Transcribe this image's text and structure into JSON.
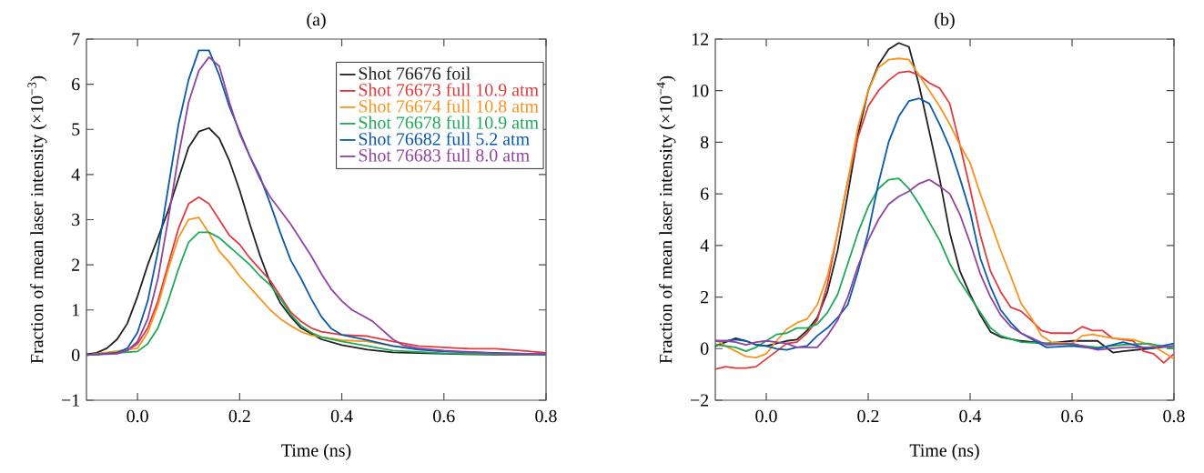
{
  "chart_data": [
    {
      "type": "line",
      "title": "(a)",
      "xlabel": "Time (ns)",
      "ylabel": "Fraction of mean laser intensity (×10$^{−3}$)",
      "legend": "top right",
      "xlim": [
        -0.1,
        0.8
      ],
      "ylim": [
        -1,
        7
      ],
      "xticks": [
        {
          "value": 0,
          "label": "0.0"
        },
        0.2,
        0.4,
        0.6,
        0.8
      ],
      "yticks": [
        {
          "value": -1,
          "label": "−1"
        },
        0,
        1,
        2,
        3,
        4,
        5,
        6,
        7
      ],
      "series": [
        {
          "name": "Shot 76676 foil",
          "color": "#231f20",
          "x": [
            -0.1,
            -0.08,
            -0.06,
            -0.04,
            -0.02,
            0,
            0.02,
            0.04,
            0.06,
            0.08,
            0.1,
            0.12,
            0.14,
            0.16,
            0.18,
            0.2,
            0.22,
            0.24,
            0.26,
            0.28,
            0.3,
            0.32,
            0.36,
            0.4,
            0.45,
            0.5,
            0.6,
            0.7,
            0.8
          ],
          "values": [
            0.02,
            0.05,
            0.15,
            0.35,
            0.7,
            1.3,
            2.0,
            2.6,
            3.2,
            3.9,
            4.6,
            4.95,
            5.03,
            4.8,
            4.3,
            3.65,
            2.9,
            2.2,
            1.6,
            1.15,
            0.85,
            0.6,
            0.35,
            0.22,
            0.12,
            0.06,
            0.03,
            0.01,
            0.01
          ]
        },
        {
          "name": "Shot 76673 full 10.9 atm",
          "color": "#e03a3e",
          "x": [
            -0.1,
            -0.02,
            0,
            0.02,
            0.04,
            0.06,
            0.08,
            0.1,
            0.12,
            0.14,
            0.16,
            0.18,
            0.2,
            0.22,
            0.24,
            0.26,
            0.28,
            0.3,
            0.32,
            0.34,
            0.36,
            0.4,
            0.45,
            0.5,
            0.55,
            0.6,
            0.65,
            0.7,
            0.75,
            0.8
          ],
          "values": [
            0,
            0.1,
            0.25,
            0.6,
            1.2,
            2.0,
            2.8,
            3.35,
            3.5,
            3.35,
            3.0,
            2.65,
            2.45,
            2.15,
            1.9,
            1.65,
            1.3,
            0.95,
            0.75,
            0.6,
            0.52,
            0.45,
            0.42,
            0.3,
            0.2,
            0.17,
            0.14,
            0.14,
            0.1,
            0.05
          ]
        },
        {
          "name": "Shot 76674 full 10.8 atm",
          "color": "#f7941d",
          "x": [
            -0.1,
            0,
            0.02,
            0.04,
            0.06,
            0.08,
            0.1,
            0.12,
            0.14,
            0.16,
            0.18,
            0.2,
            0.22,
            0.24,
            0.26,
            0.28,
            0.3,
            0.32,
            0.34,
            0.4,
            0.45,
            0.5,
            0.6
          ],
          "values": [
            0,
            0.15,
            0.5,
            1.1,
            1.9,
            2.6,
            3.0,
            3.05,
            2.7,
            2.3,
            2.05,
            1.75,
            1.5,
            1.25,
            1.0,
            0.8,
            0.65,
            0.52,
            0.44,
            0.33,
            0.3,
            0.2,
            0.08
          ]
        },
        {
          "name": "Shot 76678 full 10.9 atm",
          "color": "#1fa85a",
          "x": [
            -0.1,
            0,
            0.02,
            0.04,
            0.06,
            0.08,
            0.1,
            0.12,
            0.14,
            0.16,
            0.18,
            0.2,
            0.22,
            0.24,
            0.26,
            0.28,
            0.3,
            0.32,
            0.34,
            0.36,
            0.4,
            0.45,
            0.5,
            0.6,
            0.7,
            0.8
          ],
          "values": [
            0,
            0.08,
            0.25,
            0.6,
            1.2,
            1.9,
            2.5,
            2.72,
            2.72,
            2.6,
            2.4,
            2.2,
            2.0,
            1.75,
            1.55,
            1.25,
            0.9,
            0.65,
            0.5,
            0.4,
            0.3,
            0.2,
            0.1,
            0.04,
            0.02,
            0.01
          ]
        },
        {
          "name": "Shot 76682 full 5.2 atm",
          "color": "#0a5aa8",
          "x": [
            -0.1,
            -0.04,
            -0.02,
            0,
            0.02,
            0.04,
            0.06,
            0.08,
            0.1,
            0.12,
            0.14,
            0.16,
            0.18,
            0.2,
            0.22,
            0.24,
            0.26,
            0.28,
            0.3,
            0.32,
            0.34,
            0.36,
            0.38,
            0.4,
            0.45,
            0.5,
            0.55,
            0.6,
            0.7,
            0.8
          ],
          "values": [
            0,
            0.05,
            0.15,
            0.5,
            1.2,
            2.3,
            3.7,
            5.1,
            6.1,
            6.75,
            6.75,
            6.2,
            5.5,
            4.95,
            4.4,
            3.95,
            3.35,
            2.7,
            2.1,
            1.7,
            1.25,
            0.85,
            0.58,
            0.45,
            0.33,
            0.2,
            0.12,
            0.08,
            0.05,
            0.02
          ]
        },
        {
          "name": "Shot 76683 full 8.0 atm",
          "color": "#8e44a0",
          "x": [
            -0.1,
            -0.04,
            -0.02,
            0,
            0.02,
            0.04,
            0.06,
            0.08,
            0.1,
            0.12,
            0.14,
            0.16,
            0.18,
            0.2,
            0.22,
            0.24,
            0.26,
            0.28,
            0.3,
            0.32,
            0.34,
            0.36,
            0.38,
            0.4,
            0.42,
            0.44,
            0.46,
            0.48,
            0.5,
            0.52,
            0.55,
            0.6,
            0.7,
            0.8
          ],
          "values": [
            0,
            0.03,
            0.1,
            0.3,
            0.8,
            1.7,
            3.0,
            4.4,
            5.6,
            6.3,
            6.6,
            6.4,
            5.6,
            4.9,
            4.4,
            3.9,
            3.5,
            3.2,
            2.9,
            2.55,
            2.2,
            1.8,
            1.45,
            1.2,
            1.0,
            0.88,
            0.75,
            0.55,
            0.35,
            0.22,
            0.15,
            0.1,
            0.04,
            0.02
          ]
        }
      ]
    },
    {
      "type": "line",
      "title": "(b)",
      "xlabel": "Time (ns)",
      "ylabel": "Fraction of mean laser intensity (×10$^{−4}$)",
      "xlim": [
        -0.1,
        0.8
      ],
      "ylim": [
        -2,
        12
      ],
      "xticks": [
        {
          "value": 0,
          "label": "0.0"
        },
        0.2,
        0.4,
        0.6,
        0.8
      ],
      "yticks": [
        {
          "value": -2,
          "label": "−2"
        },
        0,
        2,
        4,
        6,
        8,
        10,
        12
      ],
      "series": [
        {
          "color": "#231f20",
          "x": [
            -0.1,
            -0.08,
            -0.06,
            -0.04,
            -0.02,
            0,
            0.02,
            0.04,
            0.06,
            0.08,
            0.1,
            0.12,
            0.14,
            0.16,
            0.18,
            0.2,
            0.22,
            0.24,
            0.26,
            0.28,
            0.3,
            0.32,
            0.34,
            0.36,
            0.38,
            0.4,
            0.42,
            0.44,
            0.46,
            0.5,
            0.55,
            0.6,
            0.65,
            0.68,
            0.7,
            0.75,
            0.8
          ],
          "values": [
            0.1,
            0.25,
            0.4,
            0.3,
            0.15,
            0.1,
            0.2,
            0.3,
            0.35,
            0.7,
            1.2,
            2.2,
            3.8,
            6.0,
            8.3,
            10.0,
            11.0,
            11.6,
            11.85,
            11.7,
            10.2,
            8.4,
            6.6,
            4.5,
            3.0,
            2.1,
            1.3,
            0.65,
            0.45,
            0.3,
            0.2,
            0.3,
            0.3,
            -0.15,
            -0.1,
            0.0,
            0.1
          ]
        },
        {
          "color": "#e03a3e",
          "x": [
            -0.1,
            -0.08,
            -0.06,
            -0.04,
            -0.02,
            0,
            0.02,
            0.04,
            0.06,
            0.08,
            0.1,
            0.12,
            0.14,
            0.16,
            0.18,
            0.2,
            0.22,
            0.24,
            0.26,
            0.28,
            0.3,
            0.32,
            0.34,
            0.36,
            0.38,
            0.4,
            0.42,
            0.44,
            0.46,
            0.48,
            0.5,
            0.52,
            0.54,
            0.56,
            0.6,
            0.62,
            0.64,
            0.66,
            0.68,
            0.72,
            0.74,
            0.76,
            0.78,
            0.8
          ],
          "values": [
            -0.8,
            -0.7,
            -0.75,
            -0.75,
            -0.7,
            -0.4,
            -0.1,
            0.2,
            0.25,
            0.6,
            1.1,
            2.5,
            4.5,
            6.5,
            8.2,
            9.4,
            10.0,
            10.4,
            10.7,
            10.75,
            10.6,
            10.3,
            10.1,
            9.5,
            7.9,
            6.2,
            4.4,
            3.0,
            2.2,
            1.6,
            1.45,
            1.1,
            0.7,
            0.6,
            0.6,
            0.85,
            0.7,
            0.7,
            0.4,
            0.3,
            -0.1,
            -0.2,
            -0.55,
            -0.2
          ]
        },
        {
          "color": "#f7941d",
          "x": [
            -0.1,
            -0.08,
            -0.06,
            -0.04,
            -0.02,
            0,
            0.02,
            0.04,
            0.06,
            0.08,
            0.1,
            0.12,
            0.14,
            0.16,
            0.18,
            0.2,
            0.22,
            0.24,
            0.26,
            0.28,
            0.3,
            0.32,
            0.34,
            0.36,
            0.38,
            0.4,
            0.42,
            0.44,
            0.46,
            0.48,
            0.5,
            0.52,
            0.54,
            0.56,
            0.6,
            0.62,
            0.64,
            0.68,
            0.72,
            0.76,
            0.8
          ],
          "values": [
            0.35,
            0.1,
            -0.1,
            -0.3,
            -0.35,
            -0.2,
            0.3,
            0.75,
            1.0,
            1.15,
            1.7,
            2.8,
            4.5,
            6.5,
            8.6,
            10.0,
            10.9,
            11.2,
            11.25,
            11.2,
            10.6,
            10.0,
            9.4,
            8.7,
            7.9,
            7.2,
            6.0,
            4.9,
            3.8,
            2.8,
            1.75,
            1.2,
            0.5,
            0.25,
            0.2,
            0.5,
            0.55,
            0.4,
            0.35,
            0.1,
            -0.4
          ]
        },
        {
          "color": "#1fa85a",
          "x": [
            -0.1,
            -0.08,
            -0.06,
            -0.04,
            -0.02,
            0,
            0.02,
            0.04,
            0.06,
            0.08,
            0.1,
            0.12,
            0.14,
            0.16,
            0.18,
            0.2,
            0.22,
            0.24,
            0.26,
            0.28,
            0.3,
            0.32,
            0.34,
            0.36,
            0.38,
            0.4,
            0.42,
            0.44,
            0.46,
            0.5,
            0.6,
            0.65,
            0.7,
            0.75,
            0.8
          ],
          "values": [
            0.15,
            0.1,
            0.05,
            -0.1,
            0.05,
            0.3,
            0.55,
            0.6,
            0.8,
            0.8,
            0.95,
            1.4,
            2.1,
            3.3,
            4.5,
            5.5,
            6.2,
            6.55,
            6.6,
            6.2,
            5.6,
            4.9,
            4.2,
            3.3,
            2.6,
            2.0,
            1.4,
            0.8,
            0.5,
            0.25,
            0.15,
            0.05,
            0.15,
            0.2,
            0.0
          ]
        },
        {
          "color": "#0a5aa8",
          "x": [
            -0.1,
            -0.08,
            -0.06,
            -0.04,
            -0.02,
            0,
            0.02,
            0.04,
            0.06,
            0.08,
            0.1,
            0.12,
            0.14,
            0.16,
            0.18,
            0.2,
            0.22,
            0.24,
            0.26,
            0.28,
            0.3,
            0.32,
            0.34,
            0.36,
            0.38,
            0.4,
            0.42,
            0.44,
            0.46,
            0.48,
            0.5,
            0.55,
            0.6,
            0.65,
            0.7,
            0.75,
            0.8
          ],
          "values": [
            0.3,
            0.3,
            0.35,
            0.3,
            0.15,
            0.1,
            0.0,
            -0.05,
            0.05,
            0.1,
            0.5,
            0.8,
            1.2,
            1.7,
            3.0,
            4.5,
            6.4,
            8.0,
            9.0,
            9.6,
            9.7,
            9.5,
            8.7,
            7.8,
            6.6,
            5.3,
            3.5,
            2.4,
            1.5,
            1.0,
            0.6,
            0.05,
            0.1,
            0.0,
            0.25,
            0.0,
            0.2
          ]
        },
        {
          "color": "#8e44a0",
          "x": [
            -0.1,
            -0.08,
            -0.06,
            -0.04,
            -0.02,
            0,
            0.02,
            0.04,
            0.06,
            0.08,
            0.1,
            0.12,
            0.14,
            0.16,
            0.18,
            0.2,
            0.22,
            0.24,
            0.26,
            0.28,
            0.3,
            0.32,
            0.34,
            0.36,
            0.38,
            0.4,
            0.42,
            0.44,
            0.46,
            0.48,
            0.5,
            0.55,
            0.6,
            0.65,
            0.7,
            0.75,
            0.8
          ],
          "values": [
            0.3,
            0.3,
            0.25,
            0.15,
            0.25,
            0.3,
            0.25,
            0.2,
            0.05,
            0.05,
            0.05,
            0.5,
            1.1,
            2.0,
            3.2,
            4.2,
            5.0,
            5.6,
            5.9,
            6.1,
            6.4,
            6.55,
            6.3,
            6.0,
            5.2,
            4.1,
            2.9,
            2.0,
            1.3,
            0.85,
            0.6,
            0.15,
            0.2,
            -0.05,
            0.05,
            0.05,
            0.1
          ]
        }
      ]
    }
  ]
}
